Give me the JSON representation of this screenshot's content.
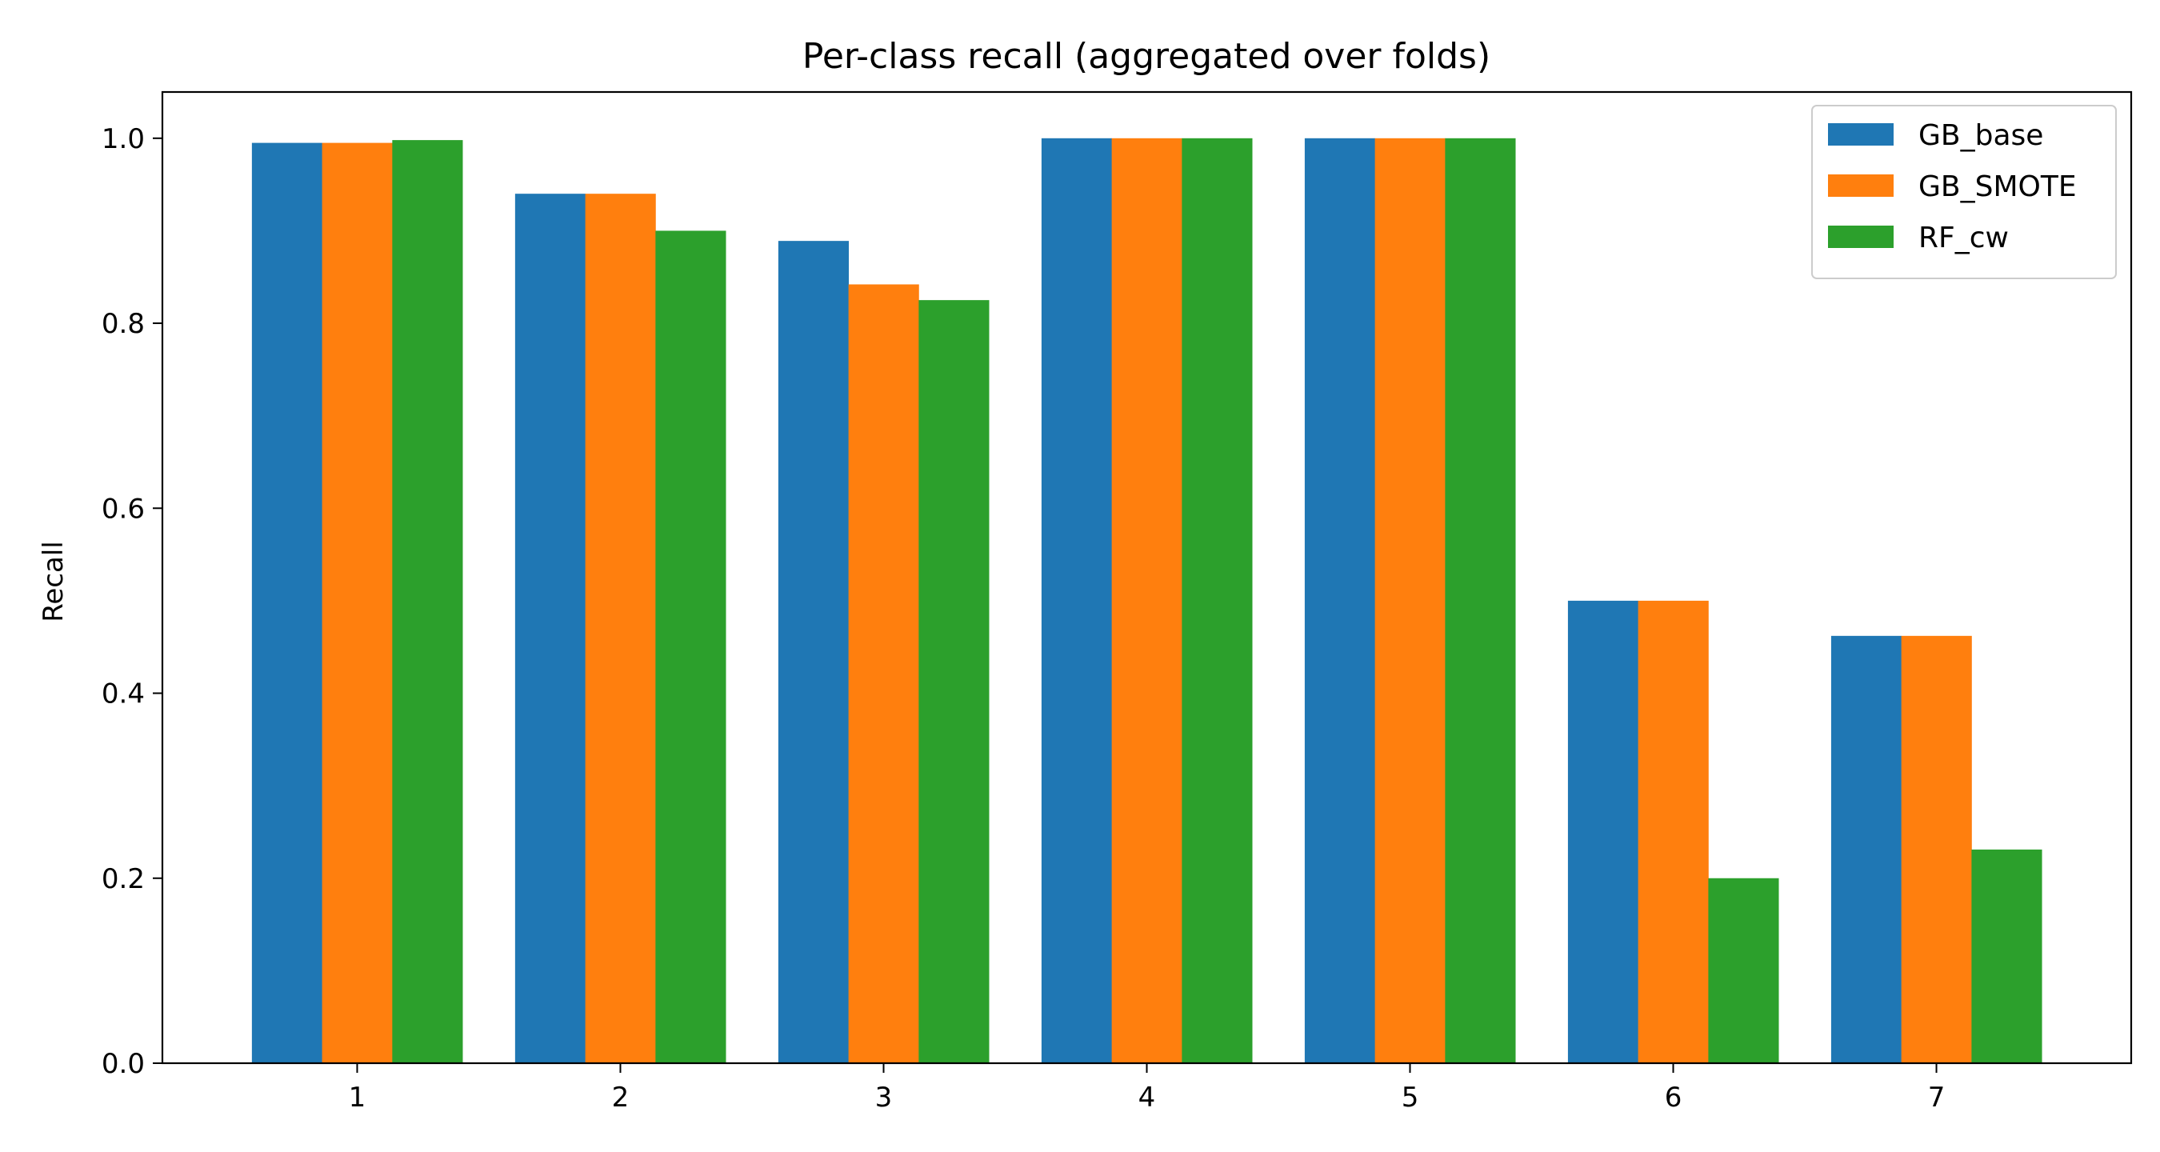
{
  "chart_data": {
    "type": "bar",
    "title": "Per-class recall (aggregated over folds)",
    "xlabel": "",
    "ylabel": "Recall",
    "categories": [
      "1",
      "2",
      "3",
      "4",
      "5",
      "6",
      "7"
    ],
    "series": [
      {
        "name": "GB_base",
        "color": "#1f77b4",
        "values": [
          0.995,
          0.94,
          0.889,
          1.0,
          1.0,
          0.5,
          0.462
        ]
      },
      {
        "name": "GB_SMOTE",
        "color": "#ff7f0e",
        "values": [
          0.995,
          0.94,
          0.842,
          1.0,
          1.0,
          0.5,
          0.462
        ]
      },
      {
        "name": "RF_cw",
        "color": "#2ca02c",
        "values": [
          0.998,
          0.9,
          0.825,
          1.0,
          1.0,
          0.2,
          0.231
        ]
      }
    ],
    "ylim": [
      0,
      1.05
    ],
    "yticks": [
      "0.0",
      "0.2",
      "0.4",
      "0.6",
      "0.8",
      "1.0"
    ],
    "grid": false,
    "legend_position": "top-right"
  }
}
